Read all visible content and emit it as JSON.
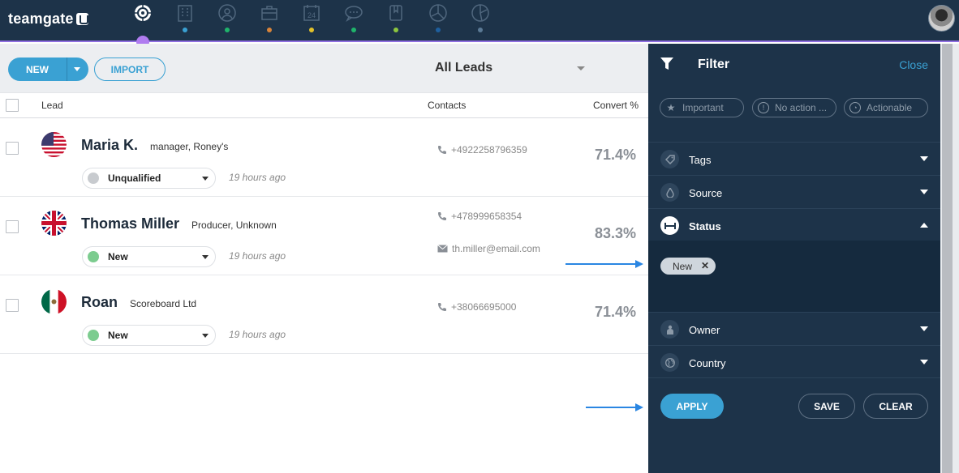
{
  "app": {
    "logo_text": "teamgate"
  },
  "nav": {
    "items": [
      {
        "name": "dashboard",
        "dot": "#b07cf0"
      },
      {
        "name": "companies",
        "dot": "#3aa1d3"
      },
      {
        "name": "people",
        "dot": "#1fb46b"
      },
      {
        "name": "deals",
        "dot": "#d9843a"
      },
      {
        "name": "calendar",
        "dot": "#e3c12a"
      },
      {
        "name": "chat",
        "dot": "#1fb46b"
      },
      {
        "name": "documents",
        "dot": "#8cc63f"
      },
      {
        "name": "reports",
        "dot": "#1e5f9e"
      },
      {
        "name": "insights",
        "dot": "#5b7a96"
      }
    ],
    "calendar_day": "24"
  },
  "toolbar": {
    "new_label": "NEW",
    "import_label": "IMPORT",
    "view_label": "All Leads"
  },
  "table": {
    "headers": {
      "lead": "Lead",
      "contacts": "Contacts",
      "convert": "Convert %"
    },
    "rows": [
      {
        "name": "Maria K.",
        "title": "manager, Roney's",
        "status": "Unqualified",
        "status_color": "#c8cbcf",
        "time": "19 hours ago",
        "phone": "+4922258796359",
        "email": "",
        "convert": "71.4%",
        "flag": "us"
      },
      {
        "name": "Thomas Miller",
        "title": "Producer, Unknown",
        "status": "New",
        "status_color": "#7ccc8f",
        "time": "19 hours ago",
        "phone": "+478999658354",
        "email": "th.miller@email.com",
        "convert": "83.3%",
        "flag": "uk"
      },
      {
        "name": "Roan",
        "title": "Scoreboard Ltd",
        "status": "New",
        "status_color": "#7ccc8f",
        "time": "19 hours ago",
        "phone": "+38066695000",
        "email": "",
        "convert": "71.4%",
        "flag": "mx"
      }
    ]
  },
  "filter": {
    "title": "Filter",
    "close_label": "Close",
    "chips": [
      "Important",
      "No action ...",
      "Actionable"
    ],
    "sections": [
      {
        "label": "Tags",
        "icon": "tag-icon"
      },
      {
        "label": "Source",
        "icon": "droplet-icon"
      },
      {
        "label": "Status",
        "icon": "status-icon"
      },
      {
        "label": "Owner",
        "icon": "person-icon"
      },
      {
        "label": "Country",
        "icon": "globe-icon"
      }
    ],
    "status_tag": "New",
    "apply_label": "APPLY",
    "save_label": "SAVE",
    "clear_label": "CLEAR"
  },
  "colors": {
    "brand": "#1d3349",
    "accent": "#3aa1d3",
    "nav_active": "#b07cf0"
  }
}
